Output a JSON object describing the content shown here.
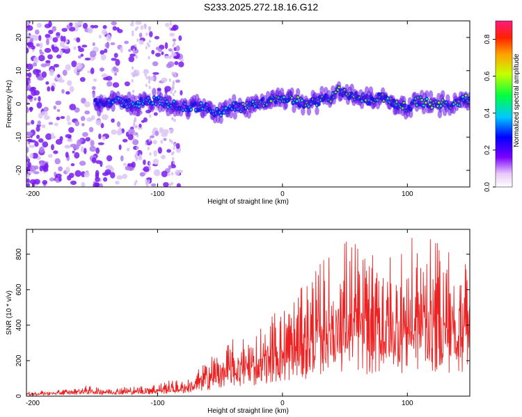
{
  "title": "S233.2025.272.18.16.G12",
  "chart_data": [
    {
      "type": "heatmap",
      "xlabel": "Height of straight line (km)",
      "ylabel": "Frequency (Hz)",
      "xlim": [
        -205,
        150
      ],
      "ylim": [
        -25,
        25
      ],
      "xticks": [
        -200,
        -100,
        0,
        100
      ],
      "yticks": [
        -20,
        -10,
        0,
        10,
        20
      ],
      "ridge": {
        "x": [
          -150,
          -140,
          -120,
          -100,
          -80,
          -60,
          -50,
          -40,
          -30,
          -20,
          -10,
          0,
          10,
          20,
          30,
          40,
          45,
          50,
          60,
          70,
          80,
          90,
          100,
          110,
          120,
          130,
          140,
          150
        ],
        "y": [
          0,
          1,
          0,
          1,
          -1,
          -1,
          -3,
          -1,
          -1,
          0,
          1,
          2,
          1,
          0,
          1,
          2,
          4,
          3,
          2,
          1,
          2,
          0,
          -1,
          1,
          0,
          0,
          0,
          2
        ]
      },
      "colorbar": {
        "label": "Normalized spectral amplitude",
        "range": [
          0,
          0.9
        ],
        "ticks": [
          0.0,
          0.2,
          0.4,
          0.6,
          0.8
        ]
      }
    },
    {
      "type": "line",
      "xlabel": "Height of straight line (km)",
      "ylabel": "SNR (10 * v/v)",
      "xlim": [
        -205,
        150
      ],
      "ylim": [
        0,
        940
      ],
      "xticks": [
        -200,
        -100,
        0,
        100
      ],
      "yticks": [
        0,
        200,
        400,
        600,
        800
      ],
      "series": [
        {
          "name": "SNR",
          "color": "#ee2222",
          "envelope": {
            "x": [
              -205,
              -180,
              -160,
              -140,
              -120,
              -100,
              -90,
              -80,
              -70,
              -60,
              -50,
              -40,
              -30,
              -20,
              -10,
              0,
              10,
              20,
              30,
              40,
              50,
              60,
              70,
              80,
              90,
              100,
              110,
              120,
              130,
              140,
              150
            ],
            "high": [
              25,
              35,
              60,
              50,
              55,
              70,
              90,
              90,
              130,
              220,
              260,
              320,
              340,
              380,
              480,
              500,
              560,
              650,
              760,
              820,
              900,
              870,
              780,
              820,
              800,
              860,
              930,
              870,
              860,
              840,
              850
            ]
          }
        }
      ]
    }
  ]
}
